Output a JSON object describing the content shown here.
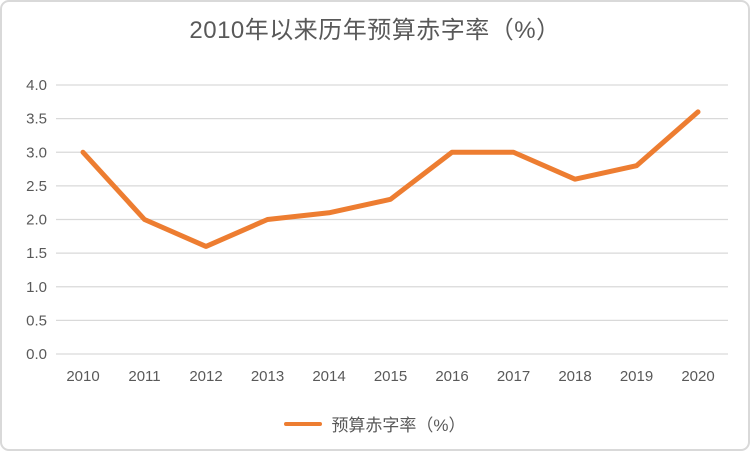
{
  "window": {
    "background": "#ffffff",
    "border_color": "#d9d9d9"
  },
  "chart_data": {
    "type": "line",
    "title": "2010年以来历年预算赤字率（%）",
    "categories": [
      "2010",
      "2011",
      "2012",
      "2013",
      "2014",
      "2015",
      "2016",
      "2017",
      "2018",
      "2019",
      "2020"
    ],
    "series": [
      {
        "name": "预算赤字率（%）",
        "values": [
          3.0,
          2.0,
          1.6,
          2.0,
          2.1,
          2.3,
          3.0,
          3.0,
          2.6,
          2.8,
          3.6
        ],
        "color": "#ed7d31"
      }
    ],
    "xlabel": "",
    "ylabel": "",
    "ylim": [
      0.0,
      4.0
    ],
    "ytick_step": 0.5,
    "ytick_labels": [
      "0.0",
      "0.5",
      "1.0",
      "1.5",
      "2.0",
      "2.5",
      "3.0",
      "3.5",
      "4.0"
    ],
    "grid": "horizontal",
    "gridline_color": "#d9d9d9",
    "axis_text_color": "#595959",
    "title_color": "#595959",
    "legend_position": "bottom",
    "legend": [
      "预算赤字率（%）"
    ]
  }
}
